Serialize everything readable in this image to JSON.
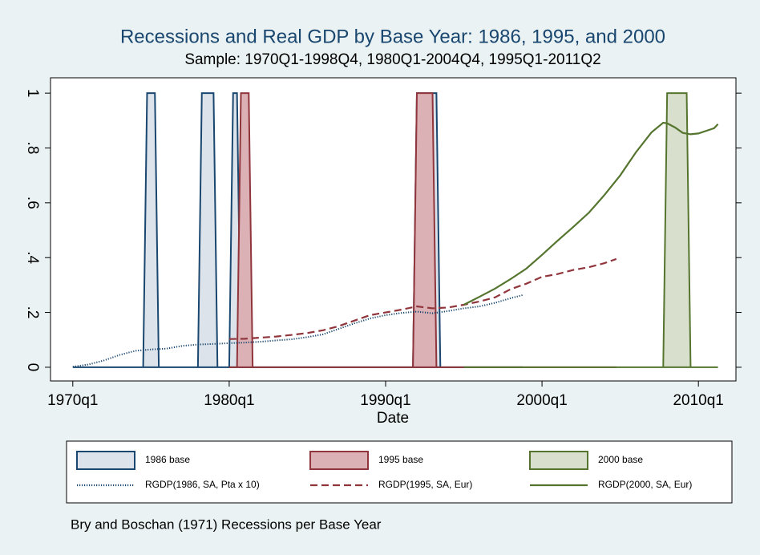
{
  "chart_data": {
    "type": "line",
    "title": "Recessions and Real GDP by Base Year: 1986, 1995, and 2000",
    "subtitle": "Sample: 1970Q1-1998Q4, 1980Q1-2004Q4, 1995Q1-2011Q2",
    "x_label": "Date",
    "note": "Bry and Boschan (1971) Recessions per Base Year",
    "xlim": [
      34.3,
      209.6
    ],
    "xticks": [
      {
        "value": 40,
        "label": "1970q1"
      },
      {
        "value": 80,
        "label": "1980q1"
      },
      {
        "value": 120,
        "label": "1990q1"
      },
      {
        "value": 160,
        "label": "2000q1"
      },
      {
        "value": 200,
        "label": "2010q1"
      }
    ],
    "ylim": [
      -0.05,
      1.056
    ],
    "yticks": [
      0,
      {
        "value": 0.2,
        "label": ".2"
      },
      {
        "value": 0.4,
        "label": ".4"
      },
      {
        "value": 0.6,
        "label": ".6"
      },
      {
        "value": 0.8,
        "label": ".8"
      },
      1
    ],
    "grid": false,
    "legend": "bottom",
    "series": [
      {
        "name": "1986 base",
        "type": "area",
        "color": "#1a476f",
        "fill": "#dde3ea",
        "x": [
          40,
          58,
          59,
          61,
          62,
          72,
          73,
          76,
          77,
          80,
          81,
          82,
          83,
          127,
          128,
          133,
          134,
          155
        ],
        "values": [
          0,
          0,
          1,
          1,
          0,
          0,
          1,
          1,
          0,
          0,
          1,
          1,
          0,
          0,
          1,
          1,
          0,
          0
        ]
      },
      {
        "name": "1995 base",
        "type": "area",
        "color": "#90353b",
        "fill": "#dbb1b5",
        "x": [
          80,
          82,
          83,
          85,
          86,
          127,
          128,
          132,
          133,
          179
        ],
        "values": [
          0,
          0,
          1,
          1,
          0,
          0,
          1,
          1,
          0,
          0
        ]
      },
      {
        "name": "2000 base",
        "type": "area",
        "color": "#55752f",
        "fill": "#d9dfcd",
        "x": [
          140,
          191,
          192,
          197,
          198,
          205
        ],
        "values": [
          0,
          0,
          1,
          1,
          0,
          0
        ]
      },
      {
        "name": "RGDP(1986, SA, Pta x 10)",
        "type": "line",
        "style": "dotted",
        "color": "#1a476f",
        "x": [
          40,
          44,
          48,
          52,
          56,
          60,
          64,
          68,
          72,
          76,
          80,
          84,
          88,
          92,
          96,
          100,
          104,
          108,
          112,
          116,
          120,
          124,
          128,
          132,
          136,
          140,
          144,
          148,
          152,
          155
        ],
        "values": [
          0.002,
          0.01,
          0.025,
          0.045,
          0.06,
          0.065,
          0.068,
          0.078,
          0.083,
          0.085,
          0.088,
          0.09,
          0.093,
          0.098,
          0.102,
          0.11,
          0.12,
          0.14,
          0.16,
          0.178,
          0.19,
          0.198,
          0.203,
          0.197,
          0.205,
          0.215,
          0.222,
          0.235,
          0.252,
          0.263
        ]
      },
      {
        "name": "RGDP(1995, SA, Eur)",
        "type": "line",
        "style": "dashed",
        "color": "#90353b",
        "x": [
          80,
          84,
          88,
          92,
          96,
          100,
          104,
          108,
          112,
          116,
          120,
          124,
          128,
          132,
          136,
          140,
          144,
          148,
          152,
          156,
          160,
          164,
          168,
          172,
          176,
          179
        ],
        "values": [
          0.103,
          0.104,
          0.108,
          0.112,
          0.118,
          0.125,
          0.135,
          0.15,
          0.17,
          0.19,
          0.2,
          0.21,
          0.222,
          0.215,
          0.218,
          0.228,
          0.24,
          0.255,
          0.285,
          0.305,
          0.33,
          0.34,
          0.355,
          0.365,
          0.38,
          0.395
        ]
      },
      {
        "name": "RGDP(2000, SA, Eur)",
        "type": "line",
        "style": "solid",
        "color": "#55752f",
        "x": [
          140,
          144,
          148,
          152,
          156,
          160,
          164,
          168,
          172,
          176,
          180,
          184,
          188,
          191,
          192,
          194,
          196,
          198,
          200,
          204,
          205
        ],
        "values": [
          0.228,
          0.257,
          0.287,
          0.322,
          0.36,
          0.41,
          0.462,
          0.512,
          0.564,
          0.629,
          0.7,
          0.784,
          0.857,
          0.892,
          0.89,
          0.875,
          0.855,
          0.85,
          0.853,
          0.872,
          0.887
        ]
      }
    ]
  }
}
